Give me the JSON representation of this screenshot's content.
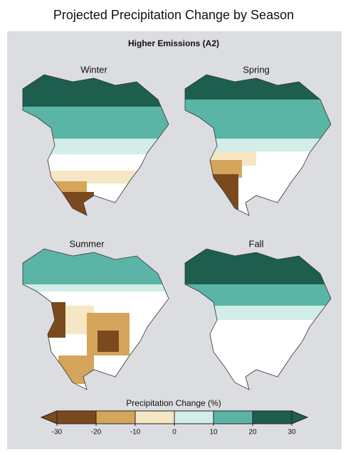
{
  "title": "Projected Precipitation Change by Season",
  "subtitle": "Higher Emissions (A2)",
  "maps": [
    {
      "label": "Winter"
    },
    {
      "label": "Spring"
    },
    {
      "label": "Summer"
    },
    {
      "label": "Fall"
    }
  ],
  "colorbar": {
    "label": "Precipitation Change (%)",
    "ticks": [
      -30,
      -20,
      -10,
      0,
      10,
      20,
      30
    ],
    "colors": [
      "#7a4a1e",
      "#d4a55a",
      "#f5e6c4",
      "#d3ede8",
      "#5bb5a6",
      "#1d5e4f"
    ]
  }
}
